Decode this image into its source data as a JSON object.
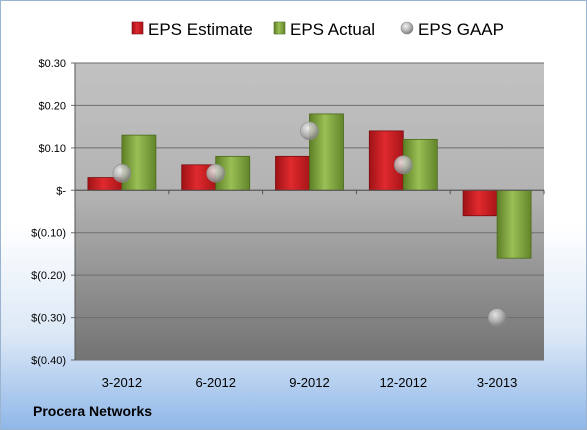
{
  "chart_data": {
    "type": "bar",
    "categories": [
      "3-2012",
      "6-2012",
      "9-2012",
      "12-2012",
      "3-2013"
    ],
    "series": [
      {
        "name": "EPS Estimate",
        "type": "bar",
        "values": [
          0.03,
          0.06,
          0.08,
          0.14,
          -0.06
        ],
        "color": "#c8191e"
      },
      {
        "name": "EPS Actual",
        "type": "bar",
        "values": [
          0.13,
          0.08,
          0.18,
          0.12,
          -0.16
        ],
        "color": "#7fa63a"
      },
      {
        "name": "EPS GAAP",
        "type": "scatter",
        "values": [
          0.04,
          0.04,
          0.14,
          0.06,
          -0.3
        ],
        "color": "#a0a0a0"
      }
    ],
    "yticks": [
      {
        "value": 0.3,
        "label": "$0.30"
      },
      {
        "value": 0.2,
        "label": "$0.20"
      },
      {
        "value": 0.1,
        "label": "$0.10"
      },
      {
        "value": 0.0,
        "label": "$-"
      },
      {
        "value": -0.1,
        "label": "$(0.10)"
      },
      {
        "value": -0.2,
        "label": "$(0.20)"
      },
      {
        "value": -0.3,
        "label": "$(0.30)"
      },
      {
        "value": -0.4,
        "label": "$(0.40)"
      }
    ],
    "ylim": [
      -0.4,
      0.3
    ],
    "grid": true,
    "legend": "top-center",
    "plot_background": "#a0a0a0",
    "company": "Procera Networks"
  }
}
